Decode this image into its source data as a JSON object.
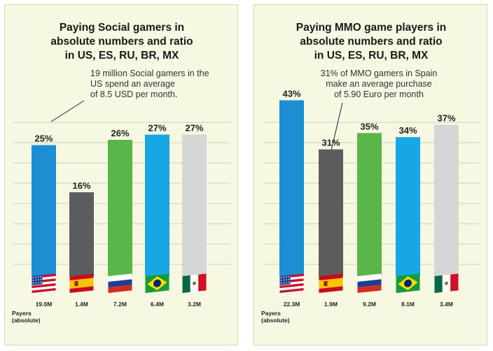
{
  "chart_data": [
    {
      "type": "bar",
      "title": [
        "Paying Social gamers in",
        "absolute numbers and ratio",
        "in US, ES, RU, BR, MX"
      ],
      "annotation": [
        "19 million Social gamers in the",
        "US spend an average",
        "of 8.5 USD per month."
      ],
      "annotation_target": "US",
      "categories": [
        "US",
        "ES",
        "RU",
        "BR",
        "MX"
      ],
      "flags": [
        "us-flag-icon",
        "es-flag-icon",
        "ru-flag-icon",
        "br-flag-icon",
        "mx-flag-icon"
      ],
      "values": [
        25,
        16,
        26,
        27,
        27
      ],
      "value_labels": [
        "25%",
        "16%",
        "26%",
        "27%",
        "27%"
      ],
      "payers": [
        "19.0M",
        "1.4M",
        "7.2M",
        "6.4M",
        "3.2M"
      ],
      "payers_label": [
        "Payers",
        "(absolute)"
      ],
      "colors": [
        "#1d8ed4",
        "#5c5d5f",
        "#5ab648",
        "#17a7e5",
        "#d5d6d6"
      ],
      "grid": true
    },
    {
      "type": "bar",
      "title": [
        "Paying MMO game players in",
        "absolute numbers and ratio",
        "in US, ES, RU, BR, MX"
      ],
      "annotation": [
        "31% of MMO gamers in Spain",
        "make an average purchase",
        "of 5.90 Euro per month"
      ],
      "annotation_target": "ES",
      "categories": [
        "US",
        "ES",
        "RU",
        "BR",
        "MX"
      ],
      "flags": [
        "us-flag-icon",
        "es-flag-icon",
        "ru-flag-icon",
        "br-flag-icon",
        "mx-flag-icon"
      ],
      "values": [
        43,
        31,
        35,
        34,
        37
      ],
      "value_labels": [
        "43%",
        "31%",
        "35%",
        "34%",
        "37%"
      ],
      "payers": [
        "22.3M",
        "1.9M",
        "9.2M",
        "8.1M",
        "3.4M"
      ],
      "payers_label": [
        "Payers",
        "(absolute)"
      ],
      "colors": [
        "#1d8ed4",
        "#5c5d5f",
        "#5ab648",
        "#17a7e5",
        "#d5d6d6"
      ],
      "grid": true
    }
  ]
}
